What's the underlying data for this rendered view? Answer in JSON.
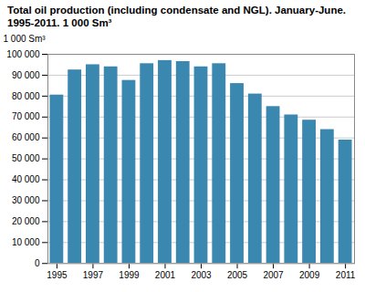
{
  "chart_data": {
    "type": "bar",
    "title": "Total oil production (including condensate and NGL). January-June.\n1995-2011. 1 000 Sm³",
    "ylabel": "1 000 Sm³",
    "x": [
      1995,
      1996,
      1997,
      1998,
      1999,
      2000,
      2001,
      2002,
      2003,
      2004,
      2005,
      2006,
      2007,
      2008,
      2009,
      2010,
      2011
    ],
    "values": [
      80500,
      92500,
      95000,
      94000,
      87500,
      95500,
      97000,
      96500,
      94000,
      95500,
      86000,
      81000,
      75000,
      71000,
      68500,
      64000,
      59000
    ],
    "color": "#3a87b0",
    "xlim": [
      1994.5,
      2011.5
    ],
    "xticks": [
      1995,
      1997,
      1999,
      2001,
      2003,
      2005,
      2007,
      2009,
      2011
    ],
    "ylim": [
      0,
      100000
    ],
    "yticks": [
      0,
      {
        "value": 10000,
        "label": "10 000"
      },
      {
        "value": 20000,
        "label": "20 000"
      },
      {
        "value": 30000,
        "label": "30 000"
      },
      {
        "value": 40000,
        "label": "40 000"
      },
      {
        "value": 50000,
        "label": "50 000"
      },
      {
        "value": 60000,
        "label": "60 000"
      },
      {
        "value": 70000,
        "label": "70 000"
      },
      {
        "value": 80000,
        "label": "80 000"
      },
      {
        "value": 90000,
        "label": "90 000"
      },
      {
        "value": 100000,
        "label": "100 000"
      }
    ],
    "grid": true
  }
}
